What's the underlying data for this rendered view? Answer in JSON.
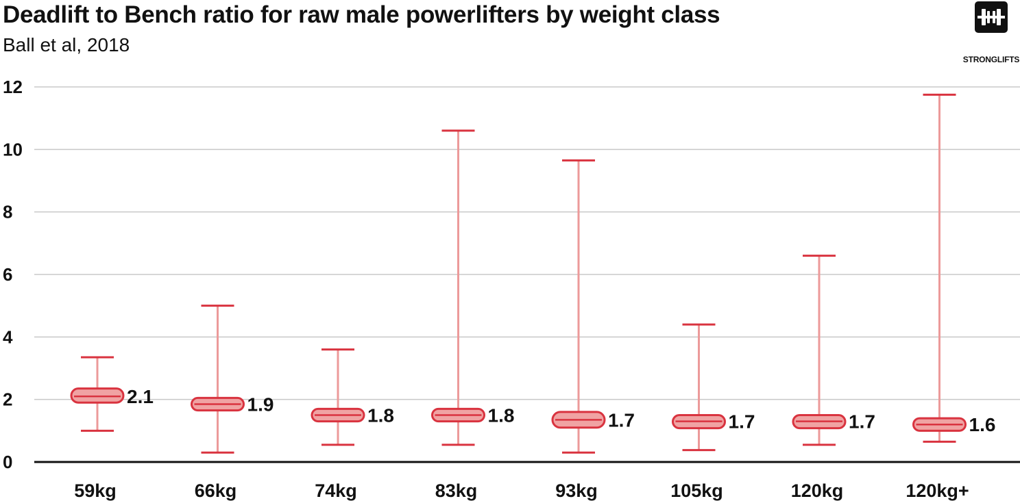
{
  "header": {
    "title": "Deadlift to Bench ratio for raw male powerlifters by weight class",
    "subtitle": "Ball et al, 2018"
  },
  "logo": {
    "icon": "barbell-icon",
    "text": "STRONGLIFTS"
  },
  "colors": {
    "accent": "#d9333f",
    "whisker": "#ec9a9a",
    "box_fill": "#f0a3a3",
    "grid": "#c8c8c8",
    "axis": "#111111"
  },
  "chart_data": {
    "type": "box",
    "title": "Deadlift to Bench ratio for raw male powerlifters by weight class",
    "subtitle": "Ball et al, 2018",
    "xlabel": "",
    "ylabel": "",
    "ylim": [
      0,
      12
    ],
    "yticks": [
      0,
      2,
      4,
      6,
      8,
      10,
      12
    ],
    "grid": true,
    "categories": [
      "59kg",
      "66kg",
      "74kg",
      "83kg",
      "93kg",
      "105kg",
      "120kg",
      "120kg+"
    ],
    "series": [
      {
        "min": [
          1.0,
          0.3,
          0.55,
          0.55,
          0.3,
          0.38,
          0.55,
          0.65
        ],
        "q1": [
          1.9,
          1.65,
          1.3,
          1.3,
          1.1,
          1.08,
          1.08,
          1.0
        ],
        "median": [
          2.1,
          1.85,
          1.5,
          1.5,
          1.35,
          1.3,
          1.3,
          1.2
        ],
        "q3": [
          2.35,
          2.05,
          1.7,
          1.7,
          1.6,
          1.5,
          1.5,
          1.4
        ],
        "max": [
          3.35,
          5.0,
          3.6,
          10.6,
          9.65,
          4.4,
          6.6,
          11.75
        ]
      }
    ],
    "data_labels": [
      "2.1",
      "1.9",
      "1.8",
      "1.8",
      "1.7",
      "1.7",
      "1.7",
      "1.6"
    ]
  }
}
